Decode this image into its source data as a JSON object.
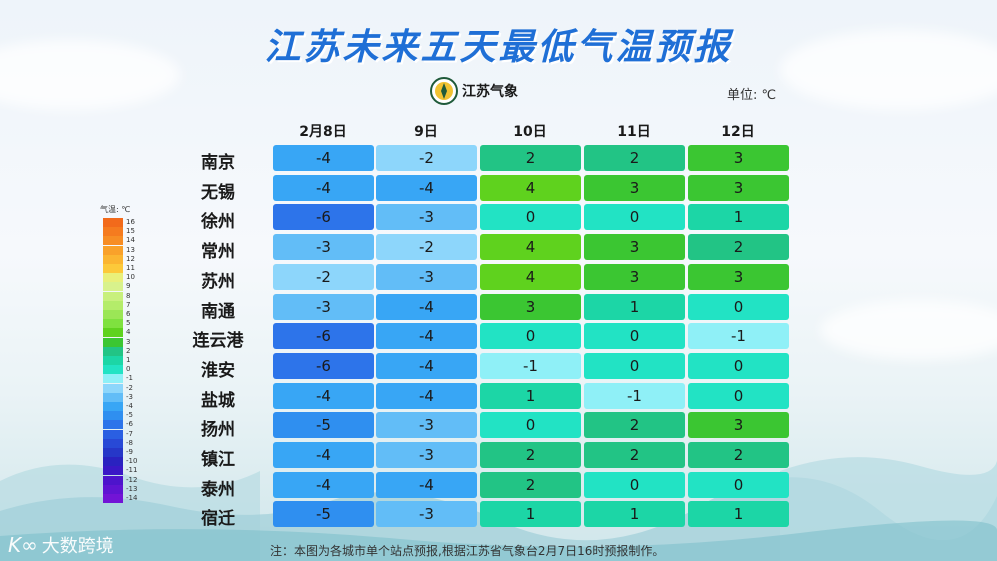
{
  "title": "江苏未来五天最低气温预报",
  "logo_text": "江苏气象",
  "unit_label": "单位: ℃",
  "dates": [
    "2月8日",
    "9日",
    "10日",
    "11日",
    "12日"
  ],
  "rows": [
    {
      "city": "南京",
      "values": [
        "-4",
        "-2",
        "2",
        "2",
        "3"
      ]
    },
    {
      "city": "无锡",
      "values": [
        "-4",
        "-4",
        "4",
        "3",
        "3"
      ]
    },
    {
      "city": "徐州",
      "values": [
        "-6",
        "-3",
        "0",
        "0",
        "1"
      ]
    },
    {
      "city": "常州",
      "values": [
        "-3",
        "-2",
        "4",
        "3",
        "2"
      ]
    },
    {
      "city": "苏州",
      "values": [
        "-2",
        "-3",
        "4",
        "3",
        "3"
      ]
    },
    {
      "city": "南通",
      "values": [
        "-3",
        "-4",
        "3",
        "1",
        "0"
      ]
    },
    {
      "city": "连云港",
      "values": [
        "-6",
        "-4",
        "0",
        "0",
        "-1"
      ]
    },
    {
      "city": "淮安",
      "values": [
        "-6",
        "-4",
        "-1",
        "0",
        "0"
      ]
    },
    {
      "city": "盐城",
      "values": [
        "-4",
        "-4",
        "1",
        "-1",
        "0"
      ]
    },
    {
      "city": "扬州",
      "values": [
        "-5",
        "-3",
        "0",
        "2",
        "3"
      ]
    },
    {
      "city": "镇江",
      "values": [
        "-4",
        "-3",
        "2",
        "2",
        "2"
      ]
    },
    {
      "city": "泰州",
      "values": [
        "-4",
        "-4",
        "2",
        "0",
        "0"
      ]
    },
    {
      "city": "宿迁",
      "values": [
        "-5",
        "-3",
        "1",
        "1",
        "1"
      ]
    }
  ],
  "legend": {
    "title": "气温: ℃",
    "levels": [
      {
        "label": "16",
        "color": "#f26a1b"
      },
      {
        "label": "15",
        "color": "#f57b1f"
      },
      {
        "label": "14",
        "color": "#f78d24"
      },
      {
        "label": "13",
        "color": "#f9a12a"
      },
      {
        "label": "12",
        "color": "#fbb531"
      },
      {
        "label": "11",
        "color": "#fcc93a"
      },
      {
        "label": "10",
        "color": "#e9f07a"
      },
      {
        "label": "9",
        "color": "#d8f28c"
      },
      {
        "label": "8",
        "color": "#c8f07d"
      },
      {
        "label": "7",
        "color": "#b4ec6a"
      },
      {
        "label": "6",
        "color": "#9be656"
      },
      {
        "label": "5",
        "color": "#7fe13f"
      },
      {
        "label": "4",
        "color": "#5fd21e"
      },
      {
        "label": "3",
        "color": "#3bc632"
      },
      {
        "label": "2",
        "color": "#22c485"
      },
      {
        "label": "1",
        "color": "#1cd6a6"
      },
      {
        "label": "0",
        "color": "#22e3c4"
      },
      {
        "label": "-1",
        "color": "#8ff0f7"
      },
      {
        "label": "-2",
        "color": "#8dd6fb"
      },
      {
        "label": "-3",
        "color": "#62bdf7"
      },
      {
        "label": "-4",
        "color": "#38a6f5"
      },
      {
        "label": "-5",
        "color": "#2f8ff0"
      },
      {
        "label": "-6",
        "color": "#2d74ea"
      },
      {
        "label": "-7",
        "color": "#2a5fe2"
      },
      {
        "label": "-8",
        "color": "#2849d6"
      },
      {
        "label": "-9",
        "color": "#2637c8"
      },
      {
        "label": "-10",
        "color": "#2a22c0"
      },
      {
        "label": "-11",
        "color": "#3a18c6"
      },
      {
        "label": "-12",
        "color": "#4d14cc"
      },
      {
        "label": "-13",
        "color": "#5f14d2"
      },
      {
        "label": "-14",
        "color": "#7214d6"
      }
    ]
  },
  "note": "注：本图为各城市单个站点预报,根据江苏省气象台2月7日16时预报制作。",
  "watermark": "大数跨境"
}
